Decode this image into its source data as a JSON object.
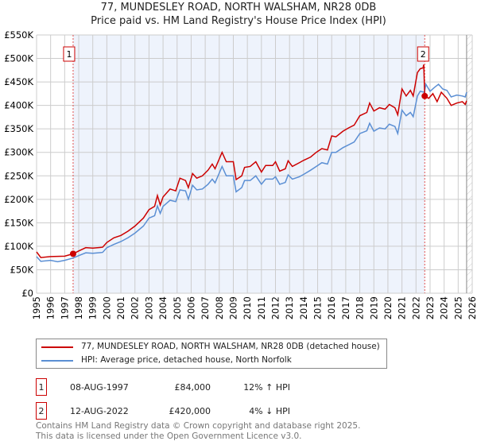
{
  "chart_data": {
    "type": "line",
    "title": "77, MUNDESLEY ROAD, NORTH WALSHAM, NR28 0DB",
    "subtitle": "Price paid vs. HM Land Registry's House Price Index (HPI)",
    "xlim": [
      1995,
      2026
    ],
    "ylim": [
      0,
      550000
    ],
    "y_ticks": [
      0,
      50000,
      100000,
      150000,
      200000,
      250000,
      300000,
      350000,
      400000,
      450000,
      500000,
      550000
    ],
    "y_tick_labels": [
      "£0",
      "£50K",
      "£100K",
      "£150K",
      "£200K",
      "£250K",
      "£300K",
      "£350K",
      "£400K",
      "£450K",
      "£500K",
      "£550K"
    ],
    "x_ticks": [
      1995,
      1996,
      1997,
      1998,
      1999,
      2000,
      2001,
      2002,
      2003,
      2004,
      2005,
      2006,
      2007,
      2008,
      2009,
      2010,
      2011,
      2012,
      2013,
      2014,
      2015,
      2016,
      2017,
      2018,
      2019,
      2020,
      2021,
      2022,
      2023,
      2024,
      2025,
      2026
    ],
    "grid": true,
    "series": [
      {
        "name": "77, MUNDESLEY ROAD, NORTH WALSHAM, NR28 0DB (detached house)",
        "color": "#cc0000",
        "points": [
          [
            1995,
            88000
          ],
          [
            1995.3,
            76000
          ],
          [
            1996,
            78000
          ],
          [
            1997,
            79000
          ],
          [
            1997.6,
            84000
          ],
          [
            1998,
            90000
          ],
          [
            1998.5,
            97000
          ],
          [
            1999,
            96000
          ],
          [
            1999.7,
            98000
          ],
          [
            2000,
            108000
          ],
          [
            2000.5,
            118000
          ],
          [
            2001,
            123000
          ],
          [
            2001.5,
            132000
          ],
          [
            2002,
            143000
          ],
          [
            2002.6,
            160000
          ],
          [
            2003,
            178000
          ],
          [
            2003.4,
            185000
          ],
          [
            2003.6,
            208000
          ],
          [
            2003.8,
            188000
          ],
          [
            2004,
            205000
          ],
          [
            2004.5,
            222000
          ],
          [
            2004.9,
            218000
          ],
          [
            2005.2,
            245000
          ],
          [
            2005.6,
            240000
          ],
          [
            2005.8,
            225000
          ],
          [
            2006.1,
            255000
          ],
          [
            2006.4,
            245000
          ],
          [
            2006.8,
            250000
          ],
          [
            2007.2,
            262000
          ],
          [
            2007.5,
            275000
          ],
          [
            2007.7,
            265000
          ],
          [
            2008.2,
            300000
          ],
          [
            2008.5,
            280000
          ],
          [
            2009,
            280000
          ],
          [
            2009.2,
            242000
          ],
          [
            2009.6,
            250000
          ],
          [
            2009.8,
            268000
          ],
          [
            2010.2,
            270000
          ],
          [
            2010.6,
            280000
          ],
          [
            2011,
            258000
          ],
          [
            2011.3,
            272000
          ],
          [
            2011.8,
            272000
          ],
          [
            2012,
            280000
          ],
          [
            2012.3,
            260000
          ],
          [
            2012.7,
            265000
          ],
          [
            2012.9,
            282000
          ],
          [
            2013.2,
            270000
          ],
          [
            2013.7,
            278000
          ],
          [
            2014,
            283000
          ],
          [
            2014.5,
            290000
          ],
          [
            2014.9,
            300000
          ],
          [
            2015.3,
            308000
          ],
          [
            2015.7,
            305000
          ],
          [
            2016,
            335000
          ],
          [
            2016.3,
            333000
          ],
          [
            2016.8,
            345000
          ],
          [
            2017.2,
            352000
          ],
          [
            2017.6,
            358000
          ],
          [
            2018,
            378000
          ],
          [
            2018.5,
            385000
          ],
          [
            2018.7,
            405000
          ],
          [
            2019,
            388000
          ],
          [
            2019.4,
            395000
          ],
          [
            2019.8,
            392000
          ],
          [
            2020.1,
            402000
          ],
          [
            2020.5,
            395000
          ],
          [
            2020.7,
            380000
          ],
          [
            2021,
            435000
          ],
          [
            2021.3,
            420000
          ],
          [
            2021.6,
            432000
          ],
          [
            2021.8,
            420000
          ],
          [
            2022.1,
            470000
          ],
          [
            2022.3,
            478000
          ],
          [
            2022.5,
            480000
          ],
          [
            2022.55,
            487000
          ],
          [
            2022.62,
            420000
          ],
          [
            2022.9,
            415000
          ],
          [
            2023.2,
            425000
          ],
          [
            2023.5,
            408000
          ],
          [
            2023.8,
            428000
          ],
          [
            2024.2,
            415000
          ],
          [
            2024.5,
            400000
          ],
          [
            2024.9,
            405000
          ],
          [
            2025.3,
            408000
          ],
          [
            2025.5,
            402000
          ],
          [
            2025.6,
            410000
          ]
        ]
      },
      {
        "name": "HPI: Average price, detached house, North Norfolk",
        "color": "#5b8fd4",
        "points": [
          [
            1995,
            78000
          ],
          [
            1995.3,
            68000
          ],
          [
            1996,
            70000
          ],
          [
            1996.5,
            67000
          ],
          [
            1997,
            70000
          ],
          [
            1997.6,
            75000
          ],
          [
            1998,
            80000
          ],
          [
            1998.5,
            86000
          ],
          [
            1999,
            85000
          ],
          [
            1999.7,
            87000
          ],
          [
            2000,
            97000
          ],
          [
            2000.5,
            104000
          ],
          [
            2001,
            110000
          ],
          [
            2001.5,
            118000
          ],
          [
            2002,
            128000
          ],
          [
            2002.6,
            143000
          ],
          [
            2003,
            160000
          ],
          [
            2003.4,
            165000
          ],
          [
            2003.6,
            186000
          ],
          [
            2003.8,
            170000
          ],
          [
            2004,
            185000
          ],
          [
            2004.5,
            198000
          ],
          [
            2004.9,
            195000
          ],
          [
            2005.2,
            220000
          ],
          [
            2005.6,
            218000
          ],
          [
            2005.8,
            200000
          ],
          [
            2006.1,
            230000
          ],
          [
            2006.4,
            220000
          ],
          [
            2006.8,
            222000
          ],
          [
            2007.2,
            232000
          ],
          [
            2007.5,
            243000
          ],
          [
            2007.7,
            235000
          ],
          [
            2008.2,
            270000
          ],
          [
            2008.5,
            250000
          ],
          [
            2009,
            250000
          ],
          [
            2009.2,
            216000
          ],
          [
            2009.6,
            225000
          ],
          [
            2009.8,
            240000
          ],
          [
            2010.2,
            240000
          ],
          [
            2010.6,
            250000
          ],
          [
            2011,
            232000
          ],
          [
            2011.3,
            243000
          ],
          [
            2011.8,
            243000
          ],
          [
            2012,
            248000
          ],
          [
            2012.3,
            232000
          ],
          [
            2012.7,
            236000
          ],
          [
            2012.9,
            252000
          ],
          [
            2013.2,
            243000
          ],
          [
            2013.7,
            248000
          ],
          [
            2014,
            253000
          ],
          [
            2014.5,
            262000
          ],
          [
            2014.9,
            270000
          ],
          [
            2015.3,
            278000
          ],
          [
            2015.7,
            275000
          ],
          [
            2016,
            300000
          ],
          [
            2016.3,
            300000
          ],
          [
            2016.8,
            310000
          ],
          [
            2017.2,
            316000
          ],
          [
            2017.6,
            322000
          ],
          [
            2018,
            340000
          ],
          [
            2018.5,
            346000
          ],
          [
            2018.7,
            362000
          ],
          [
            2019,
            345000
          ],
          [
            2019.4,
            352000
          ],
          [
            2019.8,
            350000
          ],
          [
            2020.1,
            360000
          ],
          [
            2020.5,
            355000
          ],
          [
            2020.7,
            340000
          ],
          [
            2021,
            390000
          ],
          [
            2021.3,
            378000
          ],
          [
            2021.6,
            385000
          ],
          [
            2021.8,
            376000
          ],
          [
            2022.1,
            420000
          ],
          [
            2022.3,
            430000
          ],
          [
            2022.6,
            428000
          ],
          [
            2022.7,
            445000
          ],
          [
            2023,
            430000
          ],
          [
            2023.3,
            438000
          ],
          [
            2023.6,
            445000
          ],
          [
            2023.9,
            435000
          ],
          [
            2024.2,
            432000
          ],
          [
            2024.5,
            418000
          ],
          [
            2024.9,
            422000
          ],
          [
            2025.3,
            420000
          ],
          [
            2025.5,
            418000
          ],
          [
            2025.6,
            428000
          ]
        ]
      }
    ],
    "annotations": [
      {
        "label": "1",
        "x": 1997.6,
        "price": 84000
      },
      {
        "label": "2",
        "x": 2022.62,
        "price": 420000
      }
    ],
    "shaded_region": [
      1997.6,
      2022.62
    ],
    "hatched_from": 2025.6
  },
  "legend": {
    "red": "77, MUNDESLEY ROAD, NORTH WALSHAM, NR28 0DB (detached house)",
    "blue": "HPI: Average price, detached house, North Norfolk"
  },
  "transactions": [
    {
      "num": "1",
      "date": "08-AUG-1997",
      "price": "£84,000",
      "hpi": "12% ↑ HPI"
    },
    {
      "num": "2",
      "date": "12-AUG-2022",
      "price": "£420,000",
      "hpi": "4% ↓ HPI"
    }
  ],
  "footer": [
    "Contains HM Land Registry data © Crown copyright and database right 2025.",
    "This data is licensed under the Open Government Licence v3.0."
  ]
}
